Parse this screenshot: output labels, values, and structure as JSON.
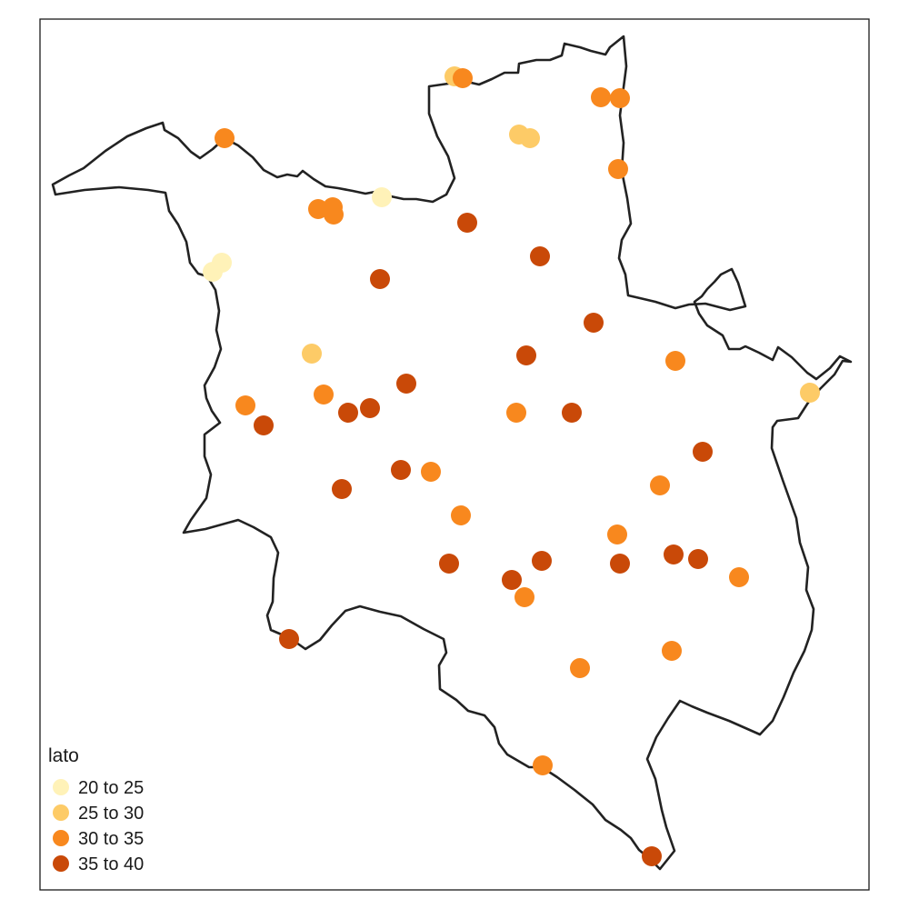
{
  "legend": {
    "title": "lato",
    "classes": [
      {
        "label": "20 to 25",
        "min": 20,
        "max": 25,
        "color": "#FFF2B8"
      },
      {
        "label": "25 to 30",
        "min": 25,
        "max": 30,
        "color": "#FDCB67"
      },
      {
        "label": "30 to 35",
        "min": 30,
        "max": 35,
        "color": "#F8881E"
      },
      {
        "label": "35 to 40",
        "min": 35,
        "max": 40,
        "color": "#C94908"
      }
    ]
  },
  "map_data": {
    "type": "point-map",
    "variable": "lato",
    "point_classes": [
      2,
      3,
      3,
      3,
      2,
      2,
      3,
      3,
      1,
      0,
      1,
      3,
      3,
      3,
      4,
      4,
      4,
      4,
      2,
      4,
      3,
      3,
      3,
      4,
      4,
      4,
      4,
      3,
      4,
      2,
      4,
      4,
      3,
      3,
      4,
      3,
      3,
      4,
      4,
      4,
      4,
      4,
      4,
      3,
      3,
      4,
      3,
      3,
      3,
      4,
      3,
      3,
      3,
      3,
      3
    ]
  }
}
